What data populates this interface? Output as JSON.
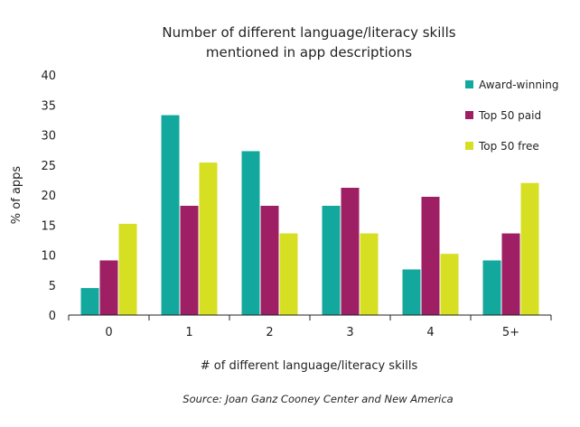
{
  "chart_data": {
    "type": "bar",
    "title": [
      "Number of different language/literacy skills",
      "mentioned in app descriptions"
    ],
    "xlabel": "# of different language/literacy skills",
    "ylabel": "% of apps",
    "categories": [
      "0",
      "1",
      "2",
      "3",
      "4",
      "5+"
    ],
    "ylim": [
      0,
      40
    ],
    "yticks": [
      0,
      5,
      10,
      15,
      20,
      25,
      30,
      35,
      40
    ],
    "grid": false,
    "legend_position": "top-right",
    "series": [
      {
        "name": "Award-winning",
        "color": "#13a89e",
        "values": [
          4.5,
          33.3,
          27.3,
          18.2,
          7.6,
          9.1
        ]
      },
      {
        "name": "Top 50 paid",
        "color": "#9e1f63",
        "values": [
          9.1,
          18.2,
          18.2,
          21.2,
          19.7,
          13.6
        ]
      },
      {
        "name": "Top 50 free",
        "color": "#d7df23",
        "values": [
          15.2,
          25.4,
          13.6,
          13.6,
          10.2,
          22.0
        ]
      }
    ],
    "source": "Source: Joan Ganz Cooney Center and New America"
  }
}
